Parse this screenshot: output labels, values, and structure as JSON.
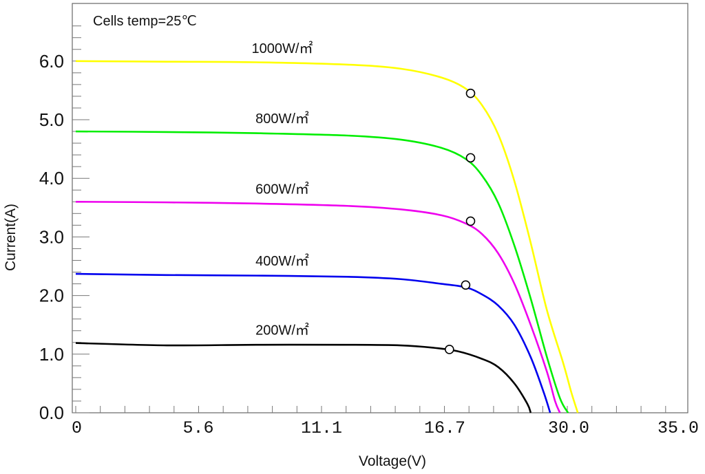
{
  "chart_data": {
    "type": "line",
    "annotation": "Cells temp=25℃",
    "xlabel": "Voltage(V)",
    "ylabel": "Current(A)",
    "xlim": [
      0,
      35
    ],
    "ylim": [
      0,
      6.6
    ],
    "x_tick_labels": [
      "0",
      "5.6",
      "11.1",
      "16.7",
      "30.0",
      "35.0"
    ],
    "y_tick_labels": [
      "0.0",
      "1.0",
      "2.0",
      "3.0",
      "4.0",
      "5.0",
      "6.0"
    ],
    "grid": false,
    "series": [
      {
        "name": "1000W/㎡",
        "color": "#ffff00",
        "points": [
          [
            0,
            6.0
          ],
          [
            5.6,
            5.99
          ],
          [
            11.1,
            5.98
          ],
          [
            16.7,
            5.94
          ],
          [
            20.0,
            5.87
          ],
          [
            22.5,
            5.72
          ],
          [
            24.0,
            5.53
          ],
          [
            25.0,
            5.25
          ],
          [
            26.0,
            4.75
          ],
          [
            27.0,
            3.95
          ],
          [
            28.0,
            2.9
          ],
          [
            29.0,
            1.75
          ],
          [
            30.0,
            0.85
          ],
          [
            30.5,
            0.35
          ],
          [
            30.9,
            0.0
          ]
        ],
        "mpp": [
          24.3,
          5.45
        ]
      },
      {
        "name": "800W/㎡",
        "color": "#00ee00",
        "points": [
          [
            0,
            4.8
          ],
          [
            5.6,
            4.79
          ],
          [
            11.1,
            4.77
          ],
          [
            16.7,
            4.73
          ],
          [
            20.0,
            4.66
          ],
          [
            22.5,
            4.52
          ],
          [
            24.0,
            4.33
          ],
          [
            25.0,
            4.05
          ],
          [
            26.0,
            3.58
          ],
          [
            27.0,
            2.85
          ],
          [
            28.0,
            1.95
          ],
          [
            29.0,
            0.95
          ],
          [
            29.8,
            0.25
          ],
          [
            30.3,
            0.0
          ]
        ],
        "mpp": [
          24.3,
          4.35
        ]
      },
      {
        "name": "600W/㎡",
        "color": "#ee00ee",
        "points": [
          [
            0,
            3.6
          ],
          [
            5.6,
            3.59
          ],
          [
            11.1,
            3.57
          ],
          [
            16.7,
            3.53
          ],
          [
            20.0,
            3.47
          ],
          [
            22.5,
            3.37
          ],
          [
            24.0,
            3.23
          ],
          [
            25.0,
            3.05
          ],
          [
            26.0,
            2.72
          ],
          [
            27.0,
            2.2
          ],
          [
            28.0,
            1.5
          ],
          [
            29.0,
            0.7
          ],
          [
            29.5,
            0.2
          ],
          [
            29.8,
            0.0
          ]
        ],
        "mpp": [
          24.3,
          3.27
        ]
      },
      {
        "name": "400W/㎡",
        "color": "#0000ee",
        "points": [
          [
            0,
            2.37
          ],
          [
            5.6,
            2.35
          ],
          [
            11.1,
            2.34
          ],
          [
            16.7,
            2.32
          ],
          [
            20.0,
            2.28
          ],
          [
            22.5,
            2.2
          ],
          [
            24.0,
            2.14
          ],
          [
            25.0,
            2.02
          ],
          [
            26.0,
            1.83
          ],
          [
            27.0,
            1.5
          ],
          [
            28.0,
            0.95
          ],
          [
            28.8,
            0.35
          ],
          [
            29.2,
            0.0
          ]
        ],
        "mpp": [
          24.0,
          2.18
        ]
      },
      {
        "name": "200W/㎡",
        "color": "#000000",
        "points": [
          [
            0,
            1.19
          ],
          [
            5.6,
            1.15
          ],
          [
            11.1,
            1.16
          ],
          [
            16.7,
            1.16
          ],
          [
            20.0,
            1.15
          ],
          [
            22.0,
            1.11
          ],
          [
            23.5,
            1.05
          ],
          [
            25.0,
            0.92
          ],
          [
            26.0,
            0.78
          ],
          [
            27.0,
            0.5
          ],
          [
            27.8,
            0.15
          ],
          [
            28.0,
            0.0
          ]
        ],
        "mpp": [
          23.0,
          1.08
        ]
      }
    ]
  }
}
